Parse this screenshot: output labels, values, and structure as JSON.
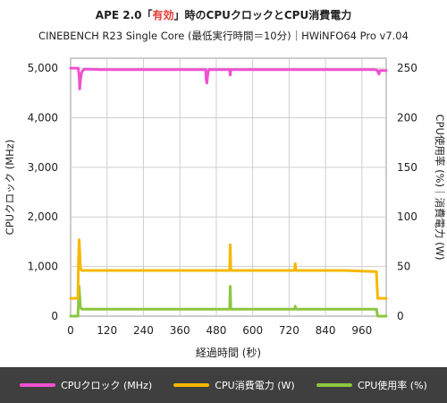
{
  "header": {
    "title_prefix": "APE 2.0「",
    "title_highlight": "有効",
    "title_suffix": "」時のCPUクロックとCPU消費電力",
    "subtitle": "CINEBENCH R23 Single Core (最低実行時間＝10分)｜HWiNFO64  Pro v7.04"
  },
  "chart_data": {
    "type": "line",
    "title": "APE 2.0「有効」時のCPUクロックとCPU消費電力",
    "subtitle": "CINEBENCH R23 Single Core (最低実行時間＝10分)｜HWiNFO64  Pro v7.04",
    "xlabel": "経過時間 (秒)",
    "ylabel_left": "CPUクロック (MHz)",
    "ylabel_right": "CPU使用率 (%)｜消費電力 (W)",
    "x_ticks": [
      "0",
      "120",
      "240",
      "360",
      "480",
      "600",
      "720",
      "840",
      "960"
    ],
    "x_tick_values": [
      0,
      120,
      240,
      360,
      480,
      600,
      720,
      840,
      960
    ],
    "y_left_ticks": [
      "0",
      "1,000",
      "2,000",
      "3,000",
      "4,000",
      "5,000"
    ],
    "y_left_tick_values": [
      0,
      1000,
      2000,
      3000,
      4000,
      5000
    ],
    "y_right_ticks": [
      "0",
      "50",
      "100",
      "150",
      "200",
      "250"
    ],
    "y_right_tick_values": [
      0,
      50,
      100,
      150,
      200,
      250
    ],
    "xlim": [
      0,
      1040
    ],
    "ylim_left": [
      0,
      5200
    ],
    "ylim_right": [
      0,
      260
    ],
    "grid": true,
    "legend_position": "bottom",
    "series": [
      {
        "name": "CPUクロック (MHz)",
        "axis": "left",
        "color": "#f050d0",
        "x": [
          0,
          25,
          28,
          30,
          33,
          36,
          40,
          45,
          60,
          100,
          200,
          300,
          400,
          445,
          447,
          449,
          452,
          455,
          500,
          524,
          526,
          528,
          532,
          600,
          700,
          800,
          900,
          1000,
          1010,
          1013,
          1016,
          1019,
          1040
        ],
        "y": [
          5000,
          5000,
          4850,
          4580,
          4800,
          4900,
          4950,
          4980,
          4980,
          4970,
          4970,
          4970,
          4970,
          4970,
          4750,
          4700,
          4880,
          4970,
          4970,
          4970,
          4860,
          4970,
          4970,
          4970,
          4970,
          4970,
          4970,
          4970,
          4960,
          4920,
          4880,
          4950,
          4950
        ]
      },
      {
        "name": "CPU消費電力 (W)",
        "axis": "right",
        "color": "#f5b800",
        "x": [
          0,
          24,
          26,
          28,
          30,
          32,
          34,
          37,
          40,
          100,
          200,
          300,
          400,
          500,
          524,
          526,
          528,
          530,
          532,
          600,
          700,
          738,
          740,
          742,
          744,
          800,
          900,
          1000,
          1008,
          1010,
          1012,
          1040
        ],
        "y": [
          18,
          18,
          55,
          77,
          65,
          50,
          47,
          46,
          46,
          46,
          46,
          46,
          46,
          46,
          46,
          72,
          46,
          46,
          46,
          46,
          46,
          46,
          53,
          47,
          46,
          46,
          46,
          45,
          45,
          30,
          18,
          18
        ]
      },
      {
        "name": "CPU使用率 (%)",
        "axis": "right",
        "color": "#8cc63f",
        "x": [
          0,
          24,
          26,
          28,
          30,
          32,
          34,
          37,
          40,
          100,
          200,
          300,
          400,
          500,
          524,
          526,
          528,
          530,
          532,
          600,
          700,
          738,
          740,
          742,
          744,
          800,
          900,
          1000,
          1008,
          1010,
          1012,
          1040
        ],
        "y": [
          0,
          0,
          15,
          30,
          20,
          9,
          8,
          7,
          7,
          7,
          7,
          7,
          7,
          7,
          7,
          30,
          7,
          7,
          7,
          7,
          7,
          7,
          10,
          7,
          7,
          7,
          7,
          7,
          7,
          3,
          0,
          0
        ]
      }
    ]
  }
}
